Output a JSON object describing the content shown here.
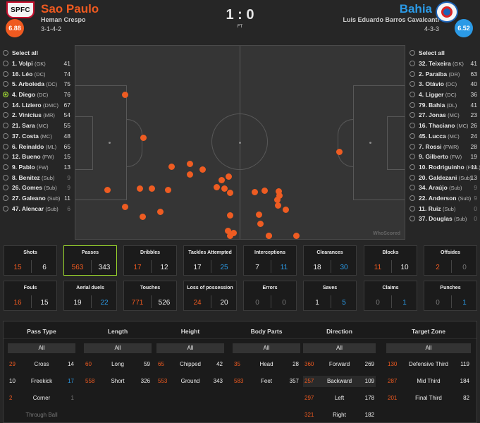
{
  "home": {
    "name": "Sao Paulo",
    "manager": "Heman Crespo",
    "formation": "3-1-4-2",
    "rating": "6.88",
    "logo_text": "SPFC",
    "color": "#ef5a20"
  },
  "away": {
    "name": "Bahia",
    "manager": "Luis Eduardo Barros Cavalcanti",
    "formation": "4-3-3",
    "rating": "6.52",
    "color": "#2b9ae6"
  },
  "score": "1 : 0",
  "status": "FT",
  "home_players": [
    {
      "label": "Select all",
      "val": ""
    },
    {
      "label": "1. Volpi",
      "pos": "(GK)",
      "val": "41"
    },
    {
      "label": "16. Léo",
      "pos": "(DC)",
      "val": "74"
    },
    {
      "label": "5. Arboleda",
      "pos": "(DC)",
      "val": "75"
    },
    {
      "label": "4. Diego",
      "pos": "(DC)",
      "val": "76",
      "sel": true
    },
    {
      "label": "14. Liziero",
      "pos": "(DMC)",
      "val": "67"
    },
    {
      "label": "2. Vinicius",
      "pos": "(MR)",
      "val": "54"
    },
    {
      "label": "21. Sara",
      "pos": "(MC)",
      "val": "55"
    },
    {
      "label": "37. Costa",
      "pos": "(MC)",
      "val": "48"
    },
    {
      "label": "6. Reinaldo",
      "pos": "(ML)",
      "val": "65"
    },
    {
      "label": "12. Bueno",
      "pos": "(FW)",
      "val": "15"
    },
    {
      "label": "9. Pablo",
      "pos": "(FW)",
      "val": "13"
    },
    {
      "label": "8. Benitez",
      "pos": "(Sub)",
      "val": "9",
      "dim": true
    },
    {
      "label": "26. Gomes",
      "pos": "(Sub)",
      "val": "9",
      "dim": true
    },
    {
      "label": "27. Galeano",
      "pos": "(Sub)",
      "val": "11"
    },
    {
      "label": "47. Alencar",
      "pos": "(Sub)",
      "val": "6",
      "dim": true
    }
  ],
  "away_players": [
    {
      "label": "Select all",
      "val": ""
    },
    {
      "label": "32. Teixeira",
      "pos": "(GK)",
      "val": "41"
    },
    {
      "label": "2. Paraiba",
      "pos": "(DR)",
      "val": "63"
    },
    {
      "label": "3. Otávio",
      "pos": "(DC)",
      "val": "40"
    },
    {
      "label": "4. Ligger",
      "pos": "(DC)",
      "val": "36"
    },
    {
      "label": "79. Bahia",
      "pos": "(DL)",
      "val": "41"
    },
    {
      "label": "27. Jonas",
      "pos": "(MC)",
      "val": "23"
    },
    {
      "label": "16. Thaciano",
      "pos": "(MC)",
      "val": "26"
    },
    {
      "label": "45. Lucca",
      "pos": "(MC)",
      "val": "24"
    },
    {
      "label": "7. Rossi",
      "pos": "(FWR)",
      "val": "28"
    },
    {
      "label": "9. Gilberto",
      "pos": "(FW)",
      "val": "19"
    },
    {
      "label": "10. Rodriguinho",
      "pos": "(FWL)",
      "val": "11"
    },
    {
      "label": "20. Galdezani",
      "pos": "(Sub)",
      "val": "13"
    },
    {
      "label": "34. Araújo",
      "pos": "(Sub)",
      "val": "9",
      "dim": true
    },
    {
      "label": "22. Anderson",
      "pos": "(Sub)",
      "val": "9",
      "dim": true
    },
    {
      "label": "11. Ruiz",
      "pos": "(Sub)",
      "val": "0",
      "dim": true
    },
    {
      "label": "37. Douglas",
      "pos": "(Sub)",
      "val": "0",
      "dim": true
    }
  ],
  "watermark": "WhoScored",
  "stats": [
    {
      "label": "Shots",
      "h": "15",
      "a": "6",
      "hc": "o",
      "ac": "w"
    },
    {
      "label": "Passes",
      "h": "563",
      "a": "343",
      "hc": "o",
      "ac": "w",
      "active": true
    },
    {
      "label": "Dribbles",
      "h": "17",
      "a": "12",
      "hc": "o",
      "ac": "w"
    },
    {
      "label": "Tackles Attempted",
      "h": "17",
      "a": "25",
      "hc": "w",
      "ac": "b"
    },
    {
      "label": "Interceptions",
      "h": "7",
      "a": "11",
      "hc": "w",
      "ac": "b"
    },
    {
      "label": "Clearances",
      "h": "18",
      "a": "30",
      "hc": "w",
      "ac": "b"
    },
    {
      "label": "Blocks",
      "h": "11",
      "a": "10",
      "hc": "o",
      "ac": "w"
    },
    {
      "label": "Offsides",
      "h": "2",
      "a": "0",
      "hc": "o",
      "ac": "g"
    },
    {
      "label": "Fouls",
      "h": "16",
      "a": "15",
      "hc": "o",
      "ac": "w"
    },
    {
      "label": "Aerial duels",
      "h": "19",
      "a": "22",
      "hc": "w",
      "ac": "b"
    },
    {
      "label": "Touches",
      "h": "771",
      "a": "526",
      "hc": "o",
      "ac": "w"
    },
    {
      "label": "Loss of possession",
      "h": "24",
      "a": "20",
      "hc": "o",
      "ac": "w"
    },
    {
      "label": "Errors",
      "h": "0",
      "a": "0",
      "hc": "g",
      "ac": "g"
    },
    {
      "label": "Saves",
      "h": "1",
      "a": "5",
      "hc": "w",
      "ac": "b"
    },
    {
      "label": "Claims",
      "h": "0",
      "a": "1",
      "hc": "g",
      "ac": "b"
    },
    {
      "label": "Punches",
      "h": "0",
      "a": "1",
      "hc": "g",
      "ac": "b"
    }
  ],
  "filter_cols": [
    {
      "title": "Pass Type",
      "all": "All",
      "rows": [
        [
          "29",
          "Cross",
          "14"
        ],
        [
          "10",
          "Freekick",
          "17"
        ],
        [
          "2",
          "Corner",
          "1"
        ],
        [
          "",
          "Through Ball",
          ""
        ]
      ]
    },
    {
      "title": "Length",
      "all": "All",
      "rows": [
        [
          "60",
          "Long",
          "59"
        ],
        [
          "558",
          "Short",
          "326"
        ]
      ]
    },
    {
      "title": "Height",
      "all": "All",
      "rows": [
        [
          "65",
          "Chipped",
          "42"
        ],
        [
          "553",
          "Ground",
          "343"
        ]
      ]
    },
    {
      "title": "Body Parts",
      "all": "All",
      "rows": [
        [
          "35",
          "Head",
          "28"
        ],
        [
          "583",
          "Feet",
          "357"
        ]
      ]
    },
    {
      "title": "Direction",
      "all": "All",
      "rows": [
        [
          "360",
          "Forward",
          "269"
        ],
        [
          "257",
          "Backward",
          "109"
        ],
        [
          "297",
          "Left",
          "178"
        ],
        [
          "321",
          "Right",
          "182"
        ]
      ]
    },
    {
      "title": "Target Zone",
      "all": "All",
      "rows": [
        [
          "130",
          "Defensive Third",
          "119"
        ],
        [
          "287",
          "Mid Third",
          "184"
        ],
        [
          "201",
          "Final Third",
          "82"
        ]
      ]
    }
  ],
  "pass_points": [
    [
      0.152,
      0.255
    ],
    [
      0.206,
      0.478
    ],
    [
      0.292,
      0.627
    ],
    [
      0.349,
      0.612
    ],
    [
      0.386,
      0.642
    ],
    [
      0.349,
      0.667
    ],
    [
      0.098,
      0.746
    ],
    [
      0.195,
      0.739
    ],
    [
      0.233,
      0.739
    ],
    [
      0.281,
      0.746
    ],
    [
      0.43,
      0.731
    ],
    [
      0.453,
      0.739
    ],
    [
      0.445,
      0.696
    ],
    [
      0.465,
      0.678
    ],
    [
      0.47,
      0.762
    ],
    [
      0.546,
      0.759
    ],
    [
      0.575,
      0.75
    ],
    [
      0.617,
      0.754
    ],
    [
      0.619,
      0.775
    ],
    [
      0.613,
      0.798
    ],
    [
      0.616,
      0.826
    ],
    [
      0.152,
      0.834
    ],
    [
      0.258,
      0.859
    ],
    [
      0.204,
      0.884
    ],
    [
      0.47,
      0.877
    ],
    [
      0.557,
      0.873
    ],
    [
      0.64,
      0.847
    ],
    [
      0.562,
      0.92
    ],
    [
      0.464,
      0.957
    ],
    [
      0.48,
      0.968
    ],
    [
      0.47,
      0.996
    ],
    [
      0.587,
      0.993
    ],
    [
      0.672,
      1.0
    ],
    [
      0.802,
      0.551
    ],
    [
      0.587,
      1.0
    ]
  ]
}
